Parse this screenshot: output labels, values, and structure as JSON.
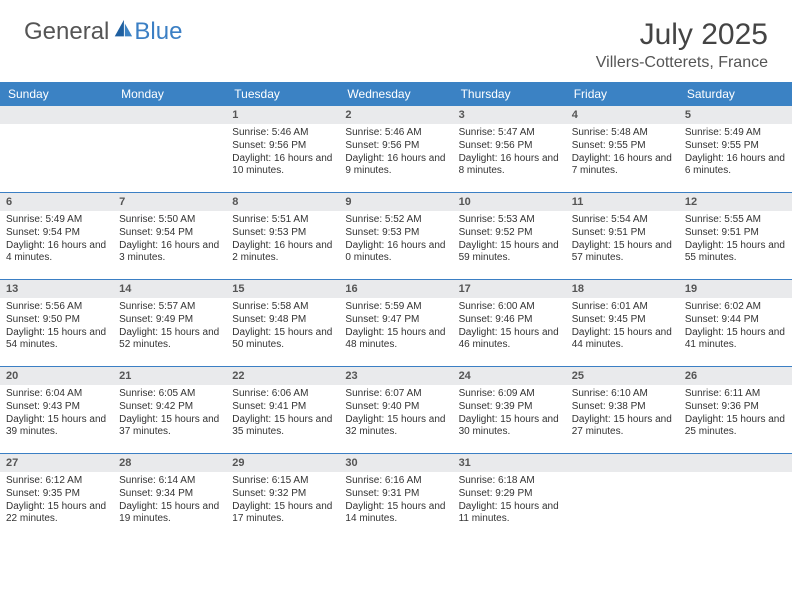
{
  "brand": {
    "left": "General",
    "right": "Blue"
  },
  "title": "July 2025",
  "location": "Villers-Cotterets, France",
  "colors": {
    "header_bg": "#3b82c4",
    "accent": "#3b7fc4",
    "daynum_bg": "#e9eaec",
    "text": "#333333"
  },
  "weekdays": [
    "Sunday",
    "Monday",
    "Tuesday",
    "Wednesday",
    "Thursday",
    "Friday",
    "Saturday"
  ],
  "weeks": [
    [
      {
        "n": "",
        "sr": "",
        "ss": "",
        "dl": ""
      },
      {
        "n": "",
        "sr": "",
        "ss": "",
        "dl": ""
      },
      {
        "n": "1",
        "sr": "Sunrise: 5:46 AM",
        "ss": "Sunset: 9:56 PM",
        "dl": "Daylight: 16 hours and 10 minutes."
      },
      {
        "n": "2",
        "sr": "Sunrise: 5:46 AM",
        "ss": "Sunset: 9:56 PM",
        "dl": "Daylight: 16 hours and 9 minutes."
      },
      {
        "n": "3",
        "sr": "Sunrise: 5:47 AM",
        "ss": "Sunset: 9:56 PM",
        "dl": "Daylight: 16 hours and 8 minutes."
      },
      {
        "n": "4",
        "sr": "Sunrise: 5:48 AM",
        "ss": "Sunset: 9:55 PM",
        "dl": "Daylight: 16 hours and 7 minutes."
      },
      {
        "n": "5",
        "sr": "Sunrise: 5:49 AM",
        "ss": "Sunset: 9:55 PM",
        "dl": "Daylight: 16 hours and 6 minutes."
      }
    ],
    [
      {
        "n": "6",
        "sr": "Sunrise: 5:49 AM",
        "ss": "Sunset: 9:54 PM",
        "dl": "Daylight: 16 hours and 4 minutes."
      },
      {
        "n": "7",
        "sr": "Sunrise: 5:50 AM",
        "ss": "Sunset: 9:54 PM",
        "dl": "Daylight: 16 hours and 3 minutes."
      },
      {
        "n": "8",
        "sr": "Sunrise: 5:51 AM",
        "ss": "Sunset: 9:53 PM",
        "dl": "Daylight: 16 hours and 2 minutes."
      },
      {
        "n": "9",
        "sr": "Sunrise: 5:52 AM",
        "ss": "Sunset: 9:53 PM",
        "dl": "Daylight: 16 hours and 0 minutes."
      },
      {
        "n": "10",
        "sr": "Sunrise: 5:53 AM",
        "ss": "Sunset: 9:52 PM",
        "dl": "Daylight: 15 hours and 59 minutes."
      },
      {
        "n": "11",
        "sr": "Sunrise: 5:54 AM",
        "ss": "Sunset: 9:51 PM",
        "dl": "Daylight: 15 hours and 57 minutes."
      },
      {
        "n": "12",
        "sr": "Sunrise: 5:55 AM",
        "ss": "Sunset: 9:51 PM",
        "dl": "Daylight: 15 hours and 55 minutes."
      }
    ],
    [
      {
        "n": "13",
        "sr": "Sunrise: 5:56 AM",
        "ss": "Sunset: 9:50 PM",
        "dl": "Daylight: 15 hours and 54 minutes."
      },
      {
        "n": "14",
        "sr": "Sunrise: 5:57 AM",
        "ss": "Sunset: 9:49 PM",
        "dl": "Daylight: 15 hours and 52 minutes."
      },
      {
        "n": "15",
        "sr": "Sunrise: 5:58 AM",
        "ss": "Sunset: 9:48 PM",
        "dl": "Daylight: 15 hours and 50 minutes."
      },
      {
        "n": "16",
        "sr": "Sunrise: 5:59 AM",
        "ss": "Sunset: 9:47 PM",
        "dl": "Daylight: 15 hours and 48 minutes."
      },
      {
        "n": "17",
        "sr": "Sunrise: 6:00 AM",
        "ss": "Sunset: 9:46 PM",
        "dl": "Daylight: 15 hours and 46 minutes."
      },
      {
        "n": "18",
        "sr": "Sunrise: 6:01 AM",
        "ss": "Sunset: 9:45 PM",
        "dl": "Daylight: 15 hours and 44 minutes."
      },
      {
        "n": "19",
        "sr": "Sunrise: 6:02 AM",
        "ss": "Sunset: 9:44 PM",
        "dl": "Daylight: 15 hours and 41 minutes."
      }
    ],
    [
      {
        "n": "20",
        "sr": "Sunrise: 6:04 AM",
        "ss": "Sunset: 9:43 PM",
        "dl": "Daylight: 15 hours and 39 minutes."
      },
      {
        "n": "21",
        "sr": "Sunrise: 6:05 AM",
        "ss": "Sunset: 9:42 PM",
        "dl": "Daylight: 15 hours and 37 minutes."
      },
      {
        "n": "22",
        "sr": "Sunrise: 6:06 AM",
        "ss": "Sunset: 9:41 PM",
        "dl": "Daylight: 15 hours and 35 minutes."
      },
      {
        "n": "23",
        "sr": "Sunrise: 6:07 AM",
        "ss": "Sunset: 9:40 PM",
        "dl": "Daylight: 15 hours and 32 minutes."
      },
      {
        "n": "24",
        "sr": "Sunrise: 6:09 AM",
        "ss": "Sunset: 9:39 PM",
        "dl": "Daylight: 15 hours and 30 minutes."
      },
      {
        "n": "25",
        "sr": "Sunrise: 6:10 AM",
        "ss": "Sunset: 9:38 PM",
        "dl": "Daylight: 15 hours and 27 minutes."
      },
      {
        "n": "26",
        "sr": "Sunrise: 6:11 AM",
        "ss": "Sunset: 9:36 PM",
        "dl": "Daylight: 15 hours and 25 minutes."
      }
    ],
    [
      {
        "n": "27",
        "sr": "Sunrise: 6:12 AM",
        "ss": "Sunset: 9:35 PM",
        "dl": "Daylight: 15 hours and 22 minutes."
      },
      {
        "n": "28",
        "sr": "Sunrise: 6:14 AM",
        "ss": "Sunset: 9:34 PM",
        "dl": "Daylight: 15 hours and 19 minutes."
      },
      {
        "n": "29",
        "sr": "Sunrise: 6:15 AM",
        "ss": "Sunset: 9:32 PM",
        "dl": "Daylight: 15 hours and 17 minutes."
      },
      {
        "n": "30",
        "sr": "Sunrise: 6:16 AM",
        "ss": "Sunset: 9:31 PM",
        "dl": "Daylight: 15 hours and 14 minutes."
      },
      {
        "n": "31",
        "sr": "Sunrise: 6:18 AM",
        "ss": "Sunset: 9:29 PM",
        "dl": "Daylight: 15 hours and 11 minutes."
      },
      {
        "n": "",
        "sr": "",
        "ss": "",
        "dl": ""
      },
      {
        "n": "",
        "sr": "",
        "ss": "",
        "dl": ""
      }
    ]
  ]
}
